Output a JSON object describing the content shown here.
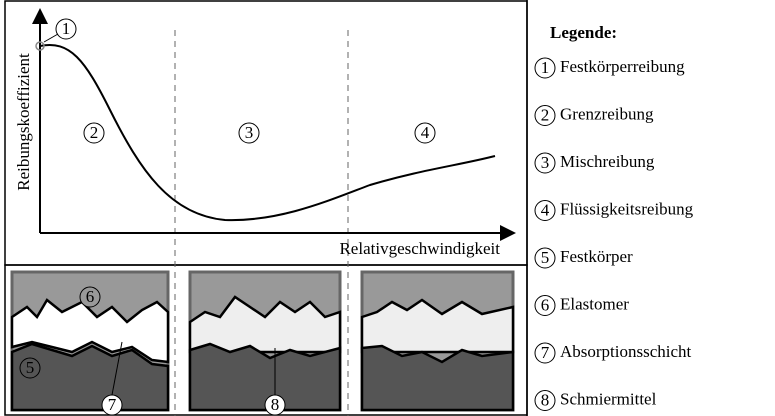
{
  "diagram": {
    "axis_labels": {
      "y": "Reibungskoeffizient",
      "x": "Relativgeschwindigkeit"
    },
    "curve_markers": [
      "1",
      "2",
      "3",
      "4"
    ],
    "legend": {
      "title": "Legende:",
      "items": [
        {
          "number": "1",
          "label": "Festkörperreibung"
        },
        {
          "number": "2",
          "label": "Grenzreibung"
        },
        {
          "number": "3",
          "label": "Mischreibung"
        },
        {
          "number": "4",
          "label": "Flüssigkeitsreibung"
        },
        {
          "number": "5",
          "label": "Festkörper"
        },
        {
          "number": "6",
          "label": "Elastomer"
        },
        {
          "number": "7",
          "label": "Absorptionsschicht"
        },
        {
          "number": "8",
          "label": "Schmiermittel"
        }
      ]
    },
    "illustration_markers": [
      "6",
      "5",
      "7",
      "8"
    ]
  }
}
